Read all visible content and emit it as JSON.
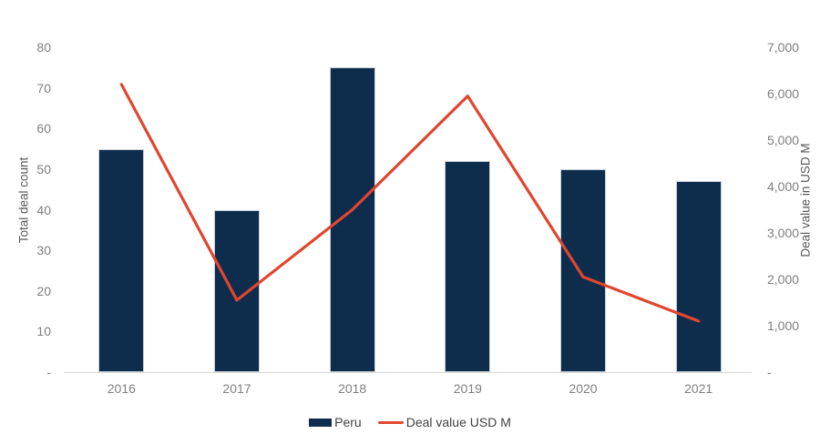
{
  "chart_data": {
    "type": "bar",
    "subtype": "combo-bar-line",
    "categories": [
      "2016",
      "2017",
      "2018",
      "2019",
      "2020",
      "2021"
    ],
    "series": [
      {
        "name": "Peru",
        "type": "bar",
        "axis": "left",
        "values": [
          55,
          40,
          75,
          52,
          50,
          47
        ],
        "color": "#0e2c4b"
      },
      {
        "name": "Deal value USD M",
        "type": "line",
        "axis": "right",
        "values": [
          6200,
          1550,
          3500,
          5950,
          2050,
          1100
        ],
        "color": "#e0462f"
      }
    ],
    "left_axis": {
      "label": "Total deal count",
      "min": 0,
      "max": 80,
      "step": 10,
      "tick_labels": [
        "-",
        "10",
        "20",
        "30",
        "40",
        "50",
        "60",
        "70",
        "80"
      ]
    },
    "right_axis": {
      "label": "Deal value in USD M",
      "min": 0,
      "max": 7000,
      "step": 1000,
      "tick_labels": [
        "-",
        "1,000",
        "2,000",
        "3,000",
        "4,000",
        "5,000",
        "6,000",
        "7,000"
      ]
    },
    "legend": [
      {
        "label": "Peru",
        "swatch": "bar",
        "color": "#0e2c4b"
      },
      {
        "label": "Deal value USD M",
        "swatch": "line",
        "color": "#e0462f"
      }
    ],
    "grid": "off",
    "legend_position": "bottom-center",
    "colors": {
      "bar_fill": "#0e2c4b",
      "bar_border": "#c6cfd9",
      "line_stroke": "#e0462f",
      "tick_text": "#7f7f7f",
      "axis_title_text": "#595959",
      "legend_text": "#404040",
      "axis_line": "#d9d9d9",
      "background": "#ffffff"
    }
  }
}
